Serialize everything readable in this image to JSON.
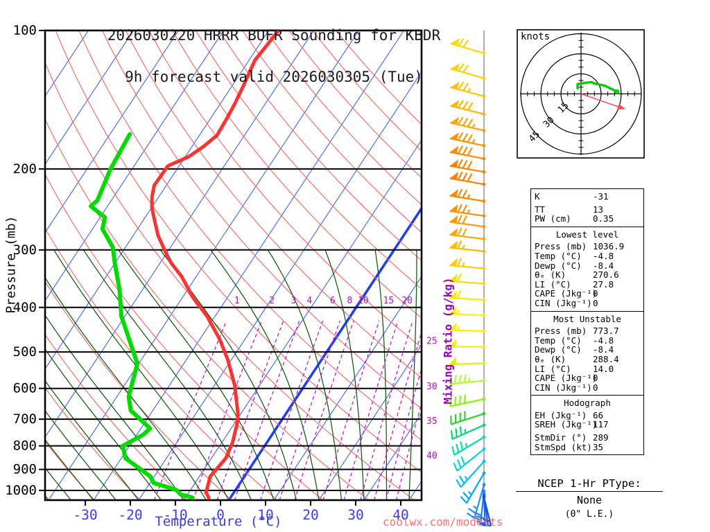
{
  "title": {
    "line1": "2026030220 HRRR BUFR Sounding for KBDR",
    "line2": "9h forecast valid 2026030305 (Tue)"
  },
  "axes": {
    "pressure_label": "Pressure (mb)",
    "temperature_label": "Temperature (°C)",
    "mixing_label": "Mixing Ratio (g/kg)"
  },
  "watermark": {
    "text": "coolwx.com/modelts"
  },
  "ptype": {
    "heading": "NCEP 1-Hr PType:",
    "value": "None",
    "note": "(0\" L.E.)"
  },
  "chart_data": {
    "type": "skewt-log-p-sounding",
    "pressure_ticks_mb": [
      100,
      200,
      300,
      400,
      500,
      600,
      700,
      800,
      900,
      1000
    ],
    "temperature_ticks_c": [
      -30,
      -20,
      -10,
      0,
      10,
      20,
      30,
      40
    ],
    "isotherms_c": {
      "min": -110,
      "max": 40,
      "step": 10,
      "highlight": 0
    },
    "dry_adiabats_k": {
      "min": 230,
      "max": 440,
      "step": 10
    },
    "moist_adiabats_start_c": {
      "min": -55,
      "max": 45,
      "step": 5,
      "top_mb": 300
    },
    "mixing_ratio_lines_gkg": [
      1,
      2,
      3,
      4,
      6,
      8,
      10,
      15,
      20,
      25,
      30,
      35,
      40
    ],
    "mixing_ratio_inline_labels": [
      1,
      2,
      3,
      4,
      6,
      8,
      10,
      15,
      20
    ],
    "mixing_ratio_edge_labels": [
      25,
      30,
      35,
      40
    ],
    "temperature_profile": [
      [
        100,
        -57.8
      ],
      [
        116,
        -58.7
      ],
      [
        132,
        -57.5
      ],
      [
        144,
        -56.8
      ],
      [
        155,
        -56.4
      ],
      [
        169,
        -56.1
      ],
      [
        179,
        -57.5
      ],
      [
        188,
        -59.2
      ],
      [
        197,
        -62.5
      ],
      [
        217,
        -62.7
      ],
      [
        229,
        -61.6
      ],
      [
        243,
        -59.9
      ],
      [
        260,
        -57.3
      ],
      [
        279,
        -54.5
      ],
      [
        302,
        -50.6
      ],
      [
        320,
        -47.6
      ],
      [
        343,
        -43.2
      ],
      [
        381,
        -37.6
      ],
      [
        418,
        -31.8
      ],
      [
        469,
        -25.6
      ],
      [
        520,
        -20.8
      ],
      [
        591,
        -15.5
      ],
      [
        680,
        -10.7
      ],
      [
        711,
        -9.5
      ],
      [
        787,
        -7.6
      ],
      [
        851,
        -6.8
      ],
      [
        892,
        -7.2
      ],
      [
        932,
        -7.6
      ],
      [
        986,
        -6.6
      ],
      [
        1010,
        -6.2
      ],
      [
        1025,
        -5.4
      ],
      [
        1037,
        -4.8
      ]
    ],
    "dewpoint_profile": [
      [
        168,
        -75.6
      ],
      [
        200,
        -74.8
      ],
      [
        234,
        -73.1
      ],
      [
        241,
        -73.7
      ],
      [
        255,
        -68.9
      ],
      [
        270,
        -67.8
      ],
      [
        296,
        -62.8
      ],
      [
        320,
        -60.1
      ],
      [
        367,
        -55.0
      ],
      [
        418,
        -50.8
      ],
      [
        530,
        -40.3
      ],
      [
        625,
        -37.4
      ],
      [
        670,
        -34.9
      ],
      [
        733,
        -28.0
      ],
      [
        757,
        -28.6
      ],
      [
        800,
        -31.5
      ],
      [
        851,
        -29.1
      ],
      [
        932,
        -20.9
      ],
      [
        963,
        -19.2
      ],
      [
        997,
        -13.2
      ],
      [
        1020,
        -11.5
      ],
      [
        1037,
        -8.4
      ]
    ],
    "wind_barbs": [
      [
        112,
        70,
        286,
        "#ffd700"
      ],
      [
        127,
        70,
        286,
        "#ffd200"
      ],
      [
        139,
        75,
        285,
        "#ffc400"
      ],
      [
        152,
        80,
        284,
        "#ffb400"
      ],
      [
        165,
        85,
        283,
        "#ffa300"
      ],
      [
        178,
        85,
        282,
        "#ff9300"
      ],
      [
        190,
        80,
        281,
        "#ff8a00"
      ],
      [
        203,
        80,
        280,
        "#ff8200"
      ],
      [
        216,
        80,
        280,
        "#ff7f00"
      ],
      [
        235,
        75,
        279,
        "#ff8700"
      ],
      [
        253,
        75,
        278,
        "#ff8f00"
      ],
      [
        267,
        70,
        278,
        "#ff9900"
      ],
      [
        284,
        70,
        277,
        "#ffa800"
      ],
      [
        302,
        65,
        276,
        "#ffbb00"
      ],
      [
        329,
        65,
        275,
        "#ffcc00"
      ],
      [
        355,
        60,
        274,
        "#ffdd00"
      ],
      [
        385,
        60,
        273,
        "#ffe800"
      ],
      [
        416,
        55,
        272,
        "#fff200"
      ],
      [
        450,
        55,
        271,
        "#f8f200"
      ],
      [
        487,
        50,
        270,
        "#f0f200"
      ],
      [
        529,
        50,
        268,
        "#e2ef00"
      ],
      [
        577,
        45,
        264,
        "#adff2f"
      ],
      [
        633,
        40,
        258,
        "#7fff00"
      ],
      [
        681,
        40,
        252,
        "#2fd32f"
      ],
      [
        721,
        35,
        246,
        "#00d975"
      ],
      [
        766,
        35,
        239,
        "#00dfb4"
      ],
      [
        813,
        30,
        231,
        "#00d8dd"
      ],
      [
        865,
        25,
        222,
        "#00c2f0"
      ],
      [
        917,
        25,
        210,
        "#00a8ff"
      ],
      [
        972,
        25,
        196,
        "#1e90ff"
      ],
      [
        1005,
        20,
        186,
        "#1f7cf7"
      ],
      [
        1020,
        20,
        178,
        "#1b6af0"
      ],
      [
        1030,
        18,
        172,
        "#175ce9"
      ],
      [
        1036,
        15,
        166,
        "#1350e2"
      ]
    ],
    "hodograph": {
      "unit": "knots",
      "rings_kt": [
        15,
        30,
        45
      ],
      "trace_uv_kt": [
        [
          -2.6,
          4.1
        ],
        [
          -2.6,
          7.3
        ],
        [
          0,
          7.8
        ],
        [
          7.8,
          8.8
        ],
        [
          9.8,
          7.8
        ],
        [
          17.6,
          6.2
        ],
        [
          26.9,
          1.6
        ]
      ],
      "storm_motion": {
        "dir_deg": 289,
        "spd_kt": 35
      }
    }
  },
  "indices": {
    "sections": [
      {
        "title": "",
        "gap_after": 0,
        "rows": [
          [
            "K",
            "-31"
          ],
          [
            "TT",
            "13"
          ],
          [
            "PW (cm)",
            "0.35"
          ]
        ]
      },
      {
        "title": "Lowest level",
        "gap_after": -1,
        "rows": [
          [
            "Press (mb)",
            "1036.9"
          ],
          [
            "Temp (°C)",
            "-4.8"
          ],
          [
            "Dewp (°C)",
            "-8.4"
          ],
          [
            "θₑ (K)",
            "270.6"
          ],
          [
            "LI (°C)",
            "27.8"
          ],
          [
            "CAPE (Jkg⁻¹)",
            "0"
          ],
          [
            "CIN (Jkg⁻¹)",
            "0"
          ]
        ]
      },
      {
        "title": "Most Unstable",
        "gap_after": -1,
        "rows": [
          [
            "Press (mb)",
            "773.7"
          ],
          [
            "Temp (°C)",
            "-4.8"
          ],
          [
            "Dewp (°C)",
            "-8.4"
          ],
          [
            "θₑ (K)",
            "288.4"
          ],
          [
            "LI (°C)",
            "14.0"
          ],
          [
            "CAPE (Jkg⁻¹)",
            "0"
          ],
          [
            "CIN (Jkg⁻¹)",
            "0"
          ]
        ]
      },
      {
        "title": "Hodograph",
        "gap_after": 1,
        "rows": [
          [
            "EH (Jkg⁻¹)",
            "66"
          ],
          [
            "SREH (Jkg⁻¹)",
            "117"
          ],
          [
            "StmDir (°)",
            "289"
          ],
          [
            "StmSpd (kt)",
            "35"
          ]
        ]
      }
    ]
  }
}
